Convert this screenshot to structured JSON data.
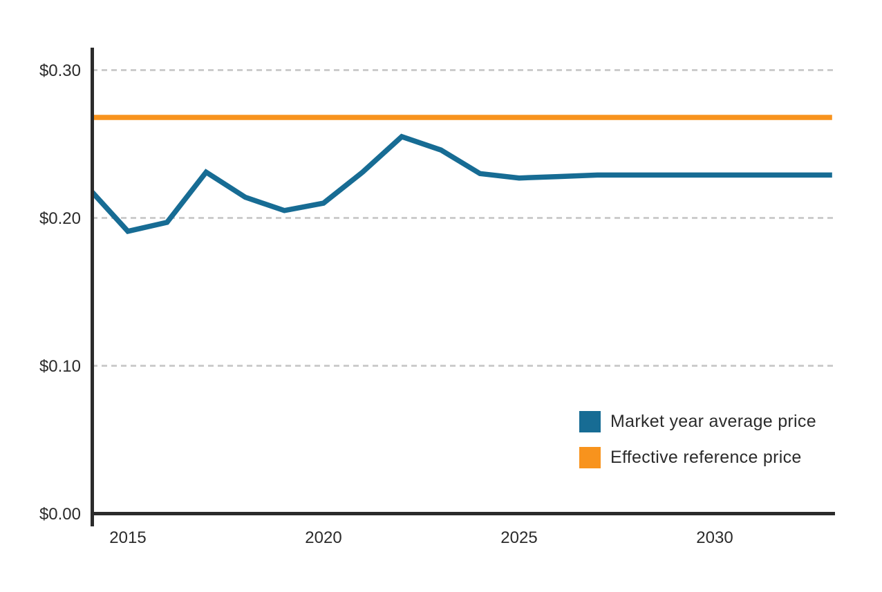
{
  "chart": {
    "y_axis": {
      "ticks": [
        {
          "label": "$0.30",
          "value": 0.3
        },
        {
          "label": "$0.20",
          "value": 0.2
        },
        {
          "label": "$0.10",
          "value": 0.1
        },
        {
          "label": "$0.00",
          "value": 0.0
        }
      ]
    },
    "x_axis": {
      "ticks": [
        {
          "label": "2015",
          "value": 2015
        },
        {
          "label": "2020",
          "value": 2020
        },
        {
          "label": "2025",
          "value": 2025
        },
        {
          "label": "2030",
          "value": 2030
        }
      ]
    },
    "legend": [
      {
        "label": "Market year average price",
        "color": "#176C94"
      },
      {
        "label": "Effective reference price",
        "color": "#F8931D"
      }
    ],
    "colors": {
      "axis": "#2B2B2B",
      "gridline": "#CCCCCC",
      "text": "#2B2B2B",
      "background": "#FFFFFF"
    }
  },
  "chart_data": {
    "type": "line",
    "x": [
      2014,
      2015,
      2016,
      2017,
      2018,
      2019,
      2020,
      2021,
      2022,
      2023,
      2024,
      2025,
      2026,
      2027,
      2028,
      2029,
      2030,
      2031,
      2032,
      2033
    ],
    "series": [
      {
        "name": "Market year average price",
        "color": "#176C94",
        "values": [
          0.22,
          0.191,
          0.197,
          0.231,
          0.214,
          0.205,
          0.21,
          0.231,
          0.255,
          0.246,
          0.23,
          0.227,
          0.228,
          0.229,
          0.229,
          0.229,
          0.229,
          0.229,
          0.229,
          0.229
        ]
      },
      {
        "name": "Effective reference price",
        "color": "#F8931D",
        "values": [
          0.268,
          0.268,
          0.268,
          0.268,
          0.268,
          0.268,
          0.268,
          0.268,
          0.268,
          0.268,
          0.268,
          0.268,
          0.268,
          0.268,
          0.268,
          0.268,
          0.268,
          0.268,
          0.268,
          0.268
        ]
      }
    ],
    "xlim": [
      2014,
      2033
    ],
    "ylim": [
      0,
      0.315
    ],
    "grid": "horizontal-dashed",
    "legend_position": "inside-lower-right"
  }
}
